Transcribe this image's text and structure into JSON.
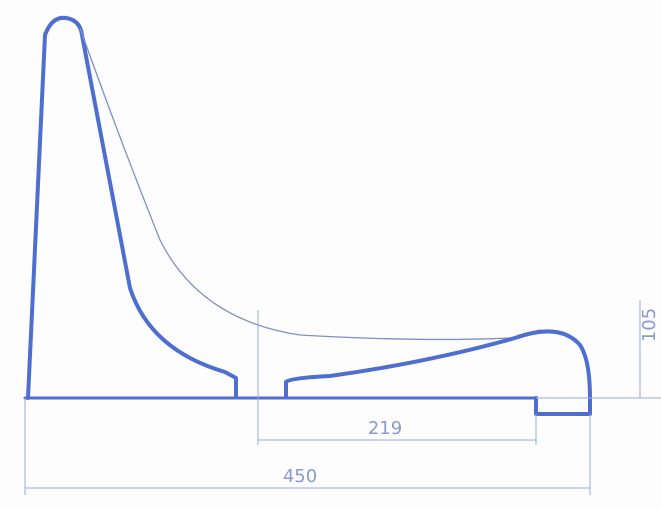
{
  "dimensions": {
    "seat_length": "219",
    "total_length": "450",
    "seat_height": "105"
  }
}
